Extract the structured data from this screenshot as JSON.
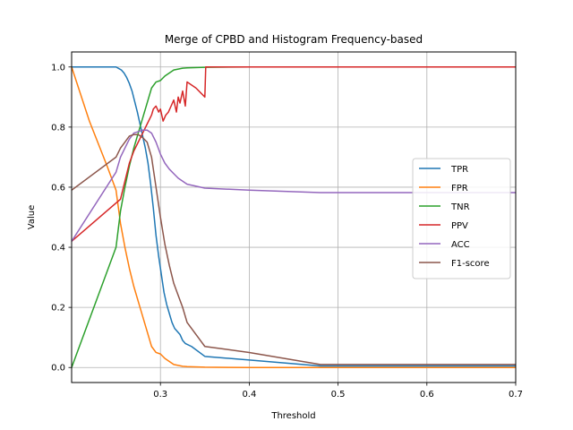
{
  "chart_data": {
    "type": "line",
    "title": "Merge of CPBD and Histogram Frequency-based",
    "xlabel": "Threshold",
    "ylabel": "Value",
    "xlim": [
      0.2,
      0.7
    ],
    "ylim": [
      -0.05,
      1.05
    ],
    "xticks": [
      0.3,
      0.4,
      0.5,
      0.6,
      0.7
    ],
    "xtick_labels": [
      "0.3",
      "0.4",
      "0.5",
      "0.6",
      "0.7"
    ],
    "yticks": [
      0.0,
      0.2,
      0.4,
      0.6,
      0.8,
      1.0
    ],
    "ytick_labels": [
      "0.0",
      "0.2",
      "0.4",
      "0.6",
      "0.8",
      "1.0"
    ],
    "grid": true,
    "legend_position": "center-right",
    "series": [
      {
        "name": "TPR",
        "color": "#1f77b4",
        "x": [
          0.2,
          0.25,
          0.253,
          0.256,
          0.259,
          0.262,
          0.265,
          0.268,
          0.271,
          0.274,
          0.277,
          0.28,
          0.283,
          0.286,
          0.289,
          0.292,
          0.295,
          0.298,
          0.301,
          0.304,
          0.307,
          0.31,
          0.313,
          0.316,
          0.319,
          0.322,
          0.325,
          0.328,
          0.335,
          0.35,
          0.4,
          0.48,
          0.7
        ],
        "y": [
          1.0,
          1.0,
          0.995,
          0.99,
          0.98,
          0.965,
          0.945,
          0.92,
          0.885,
          0.85,
          0.81,
          0.77,
          0.73,
          0.68,
          0.61,
          0.53,
          0.44,
          0.37,
          0.31,
          0.25,
          0.21,
          0.18,
          0.15,
          0.13,
          0.12,
          0.11,
          0.09,
          0.08,
          0.07,
          0.037,
          0.025,
          0.005,
          0.005
        ]
      },
      {
        "name": "FPR",
        "color": "#ff7f0e",
        "x": [
          0.2,
          0.22,
          0.24,
          0.25,
          0.255,
          0.26,
          0.265,
          0.27,
          0.275,
          0.28,
          0.285,
          0.29,
          0.295,
          0.3,
          0.305,
          0.31,
          0.315,
          0.32,
          0.325,
          0.33,
          0.35,
          0.4,
          0.5,
          0.7
        ],
        "y": [
          1.0,
          0.82,
          0.67,
          0.59,
          0.48,
          0.4,
          0.33,
          0.27,
          0.22,
          0.17,
          0.12,
          0.07,
          0.05,
          0.045,
          0.03,
          0.02,
          0.01,
          0.007,
          0.004,
          0.003,
          0.001,
          0.0,
          0.0,
          0.0
        ]
      },
      {
        "name": "TNR",
        "color": "#2ca02c",
        "x": [
          0.2,
          0.25,
          0.255,
          0.26,
          0.265,
          0.27,
          0.275,
          0.28,
          0.285,
          0.29,
          0.295,
          0.3,
          0.305,
          0.31,
          0.315,
          0.32,
          0.325,
          0.33,
          0.35,
          0.4,
          0.5,
          0.7
        ],
        "y": [
          0.0,
          0.4,
          0.52,
          0.6,
          0.67,
          0.73,
          0.78,
          0.83,
          0.88,
          0.93,
          0.95,
          0.955,
          0.97,
          0.98,
          0.99,
          0.993,
          0.996,
          0.997,
          0.999,
          1.0,
          1.0,
          1.0
        ]
      },
      {
        "name": "PPV",
        "color": "#d62728",
        "x": [
          0.2,
          0.255,
          0.26,
          0.265,
          0.27,
          0.275,
          0.28,
          0.285,
          0.29,
          0.292,
          0.295,
          0.298,
          0.3,
          0.303,
          0.306,
          0.309,
          0.312,
          0.315,
          0.318,
          0.32,
          0.322,
          0.325,
          0.328,
          0.33,
          0.34,
          0.35,
          0.351,
          0.4,
          0.5,
          0.7
        ],
        "y": [
          0.42,
          0.56,
          0.62,
          0.68,
          0.72,
          0.75,
          0.78,
          0.81,
          0.84,
          0.86,
          0.87,
          0.85,
          0.86,
          0.82,
          0.84,
          0.85,
          0.87,
          0.89,
          0.85,
          0.9,
          0.88,
          0.92,
          0.87,
          0.95,
          0.93,
          0.9,
          1.0,
          1.0,
          1.0,
          1.0
        ]
      },
      {
        "name": "ACC",
        "color": "#9467bd",
        "x": [
          0.2,
          0.25,
          0.255,
          0.26,
          0.265,
          0.27,
          0.275,
          0.28,
          0.285,
          0.29,
          0.295,
          0.3,
          0.305,
          0.31,
          0.315,
          0.32,
          0.325,
          0.33,
          0.35,
          0.4,
          0.48,
          0.7
        ],
        "y": [
          0.42,
          0.65,
          0.7,
          0.73,
          0.76,
          0.78,
          0.785,
          0.79,
          0.79,
          0.78,
          0.75,
          0.71,
          0.68,
          0.66,
          0.645,
          0.63,
          0.62,
          0.61,
          0.597,
          0.59,
          0.582,
          0.582
        ]
      },
      {
        "name": "F1-score",
        "color": "#8c564b",
        "x": [
          0.2,
          0.25,
          0.255,
          0.26,
          0.265,
          0.27,
          0.275,
          0.28,
          0.285,
          0.29,
          0.295,
          0.3,
          0.305,
          0.31,
          0.315,
          0.32,
          0.325,
          0.33,
          0.35,
          0.4,
          0.48,
          0.7
        ],
        "y": [
          0.59,
          0.7,
          0.73,
          0.75,
          0.77,
          0.775,
          0.775,
          0.765,
          0.75,
          0.7,
          0.6,
          0.5,
          0.41,
          0.34,
          0.28,
          0.24,
          0.2,
          0.15,
          0.07,
          0.05,
          0.01,
          0.01
        ]
      }
    ]
  }
}
